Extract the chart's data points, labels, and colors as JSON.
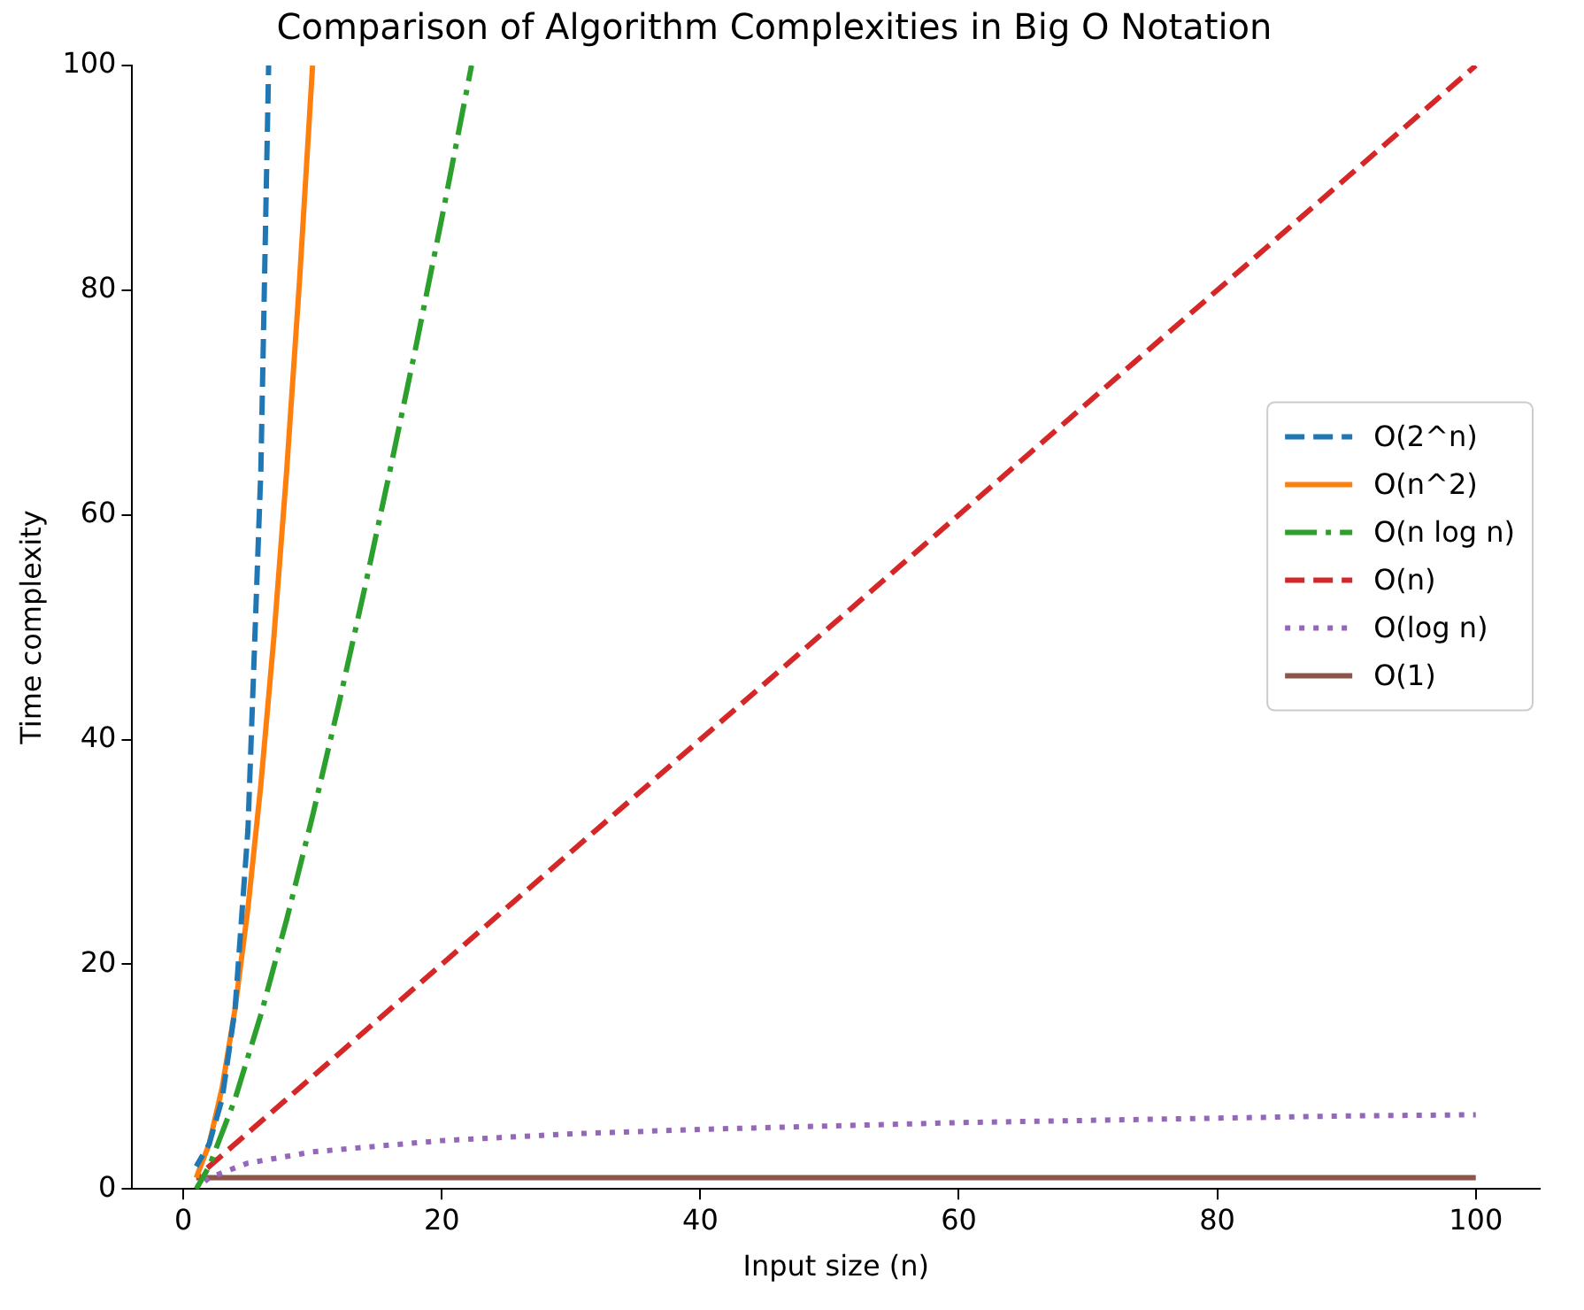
{
  "chart_data": {
    "type": "line",
    "title": "Comparison of Algorithm Complexities in Big O Notation",
    "xlabel": "Input size (n)",
    "ylabel": "Time complexity",
    "xlim": [
      -3.95,
      104.95
    ],
    "xticks": [
      0,
      20,
      40,
      60,
      80,
      100
    ],
    "ylim": [
      0,
      100
    ],
    "yticks": [
      0,
      20,
      40,
      60,
      80,
      100
    ],
    "grid": false,
    "legend": "right",
    "marker": "none",
    "series": [
      {
        "name": "O(2^n)",
        "color": "#1f77b4",
        "line_style": "dashed",
        "x": [
          1,
          2,
          3,
          4,
          5,
          6,
          6.6
        ],
        "values": [
          2,
          4,
          8,
          16,
          32,
          64,
          100
        ]
      },
      {
        "name": "O(n^2)",
        "color": "#ff7f0e",
        "line_style": "solid",
        "x": [
          1,
          2,
          3,
          4,
          5,
          6,
          7,
          8,
          9,
          10
        ],
        "values": [
          1,
          4,
          9,
          16,
          25,
          36,
          49,
          64,
          81,
          100
        ]
      },
      {
        "name": "O(n log n)",
        "color": "#2ca02c",
        "line_style": "dashdot",
        "x": [
          1,
          2,
          4,
          6,
          8,
          10,
          12,
          14,
          16,
          18,
          20,
          22.3
        ],
        "values": [
          0,
          2,
          8,
          15.5,
          24,
          33.2,
          43,
          53.3,
          64,
          75,
          86.4,
          100
        ]
      },
      {
        "name": "O(n)",
        "color": "#d62728",
        "line_style": "dashed",
        "x": [
          1,
          50,
          100
        ],
        "values": [
          1,
          50,
          100
        ]
      },
      {
        "name": "O(log n)",
        "color": "#9467bd",
        "line_style": "dotted",
        "x": [
          1,
          2,
          5,
          10,
          20,
          30,
          40,
          50,
          60,
          70,
          80,
          90,
          100
        ],
        "values": [
          0,
          1,
          2.3,
          3.3,
          4.3,
          4.9,
          5.3,
          5.6,
          5.9,
          6.1,
          6.3,
          6.5,
          6.6
        ]
      },
      {
        "name": "O(1)",
        "color": "#8c564b",
        "line_style": "solid",
        "x": [
          1,
          100
        ],
        "values": [
          1,
          1
        ]
      }
    ]
  }
}
